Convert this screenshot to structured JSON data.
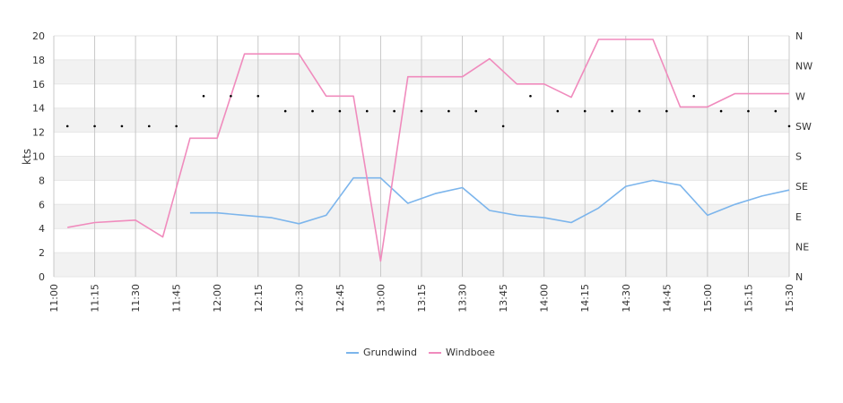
{
  "colors": {
    "grundwind": "#7cb5ec",
    "windboee": "#f08bbd",
    "band": "#f2f2f2",
    "grid": "#c8c8c8",
    "direction_dot": "#000000"
  },
  "chart_data": {
    "type": "line",
    "title": "",
    "xlabel": "",
    "ylabel": "kts",
    "ylim": [
      0,
      20
    ],
    "xlim": [
      "11:00",
      "15:30"
    ],
    "y_ticks": [
      0,
      2,
      4,
      6,
      8,
      10,
      12,
      14,
      16,
      18,
      20
    ],
    "x_tick_labels": [
      "11:00",
      "11:15",
      "11:30",
      "11:45",
      "12:00",
      "12:15",
      "12:30",
      "12:45",
      "13:00",
      "13:15",
      "13:30",
      "13:45",
      "14:00",
      "14:15",
      "14:30",
      "14:45",
      "15:00",
      "15:15",
      "15:30"
    ],
    "right_axis": {
      "label": "",
      "ticks": [
        "N",
        "NE",
        "E",
        "SE",
        "S",
        "SW",
        "W",
        "NW",
        "N"
      ]
    },
    "grid": true,
    "legend_position": "bottom-center",
    "series": [
      {
        "name": "Grundwind",
        "color_key": "grundwind",
        "points": [
          [
            "11:50",
            5.3
          ],
          [
            "12:00",
            5.3
          ],
          [
            "12:10",
            5.1
          ],
          [
            "12:20",
            4.9
          ],
          [
            "12:30",
            4.4
          ],
          [
            "12:40",
            5.1
          ],
          [
            "12:50",
            8.2
          ],
          [
            "13:00",
            8.2
          ],
          [
            "13:10",
            6.1
          ],
          [
            "13:20",
            6.9
          ],
          [
            "13:30",
            7.4
          ],
          [
            "13:40",
            5.5
          ],
          [
            "13:50",
            5.1
          ],
          [
            "14:00",
            4.9
          ],
          [
            "14:10",
            4.5
          ],
          [
            "14:20",
            5.7
          ],
          [
            "14:30",
            7.5
          ],
          [
            "14:40",
            8.0
          ],
          [
            "14:50",
            7.6
          ],
          [
            "15:00",
            5.1
          ],
          [
            "15:10",
            6.0
          ],
          [
            "15:20",
            6.7
          ],
          [
            "15:30",
            7.2
          ]
        ]
      },
      {
        "name": "Windboee",
        "color_key": "windboee",
        "points": [
          [
            "11:05",
            4.1
          ],
          [
            "11:15",
            4.5
          ],
          [
            "11:30",
            4.7
          ],
          [
            "11:40",
            3.3
          ],
          [
            "11:50",
            11.5
          ],
          [
            "12:00",
            11.5
          ],
          [
            "12:10",
            18.5
          ],
          [
            "12:20",
            18.5
          ],
          [
            "12:30",
            18.5
          ],
          [
            "12:40",
            15.0
          ],
          [
            "12:50",
            15.0
          ],
          [
            "13:00",
            1.3
          ],
          [
            "13:10",
            16.6
          ],
          [
            "13:20",
            16.6
          ],
          [
            "13:30",
            16.6
          ],
          [
            "13:40",
            18.1
          ],
          [
            "13:50",
            16.0
          ],
          [
            "14:00",
            16.0
          ],
          [
            "14:10",
            14.9
          ],
          [
            "14:20",
            19.7
          ],
          [
            "14:30",
            19.7
          ],
          [
            "14:40",
            19.7
          ],
          [
            "14:50",
            14.1
          ],
          [
            "15:00",
            14.1
          ],
          [
            "15:10",
            15.2
          ],
          [
            "15:20",
            15.2
          ],
          [
            "15:30",
            15.2
          ]
        ]
      },
      {
        "name": "",
        "type": "scatter",
        "axis": "right",
        "color_key": "direction_dot",
        "points": [
          [
            "11:05",
            "SW"
          ],
          [
            "11:15",
            "SW"
          ],
          [
            "11:25",
            "SW"
          ],
          [
            "11:35",
            "SW"
          ],
          [
            "11:45",
            "SW"
          ],
          [
            "11:55",
            "W"
          ],
          [
            "12:05",
            "W"
          ],
          [
            "12:15",
            "W"
          ],
          [
            "12:25",
            "WSW"
          ],
          [
            "12:35",
            "WSW"
          ],
          [
            "12:45",
            "WSW"
          ],
          [
            "12:55",
            "WSW"
          ],
          [
            "13:05",
            "WSW"
          ],
          [
            "13:15",
            "WSW"
          ],
          [
            "13:25",
            "WSW"
          ],
          [
            "13:35",
            "WSW"
          ],
          [
            "13:45",
            "SW"
          ],
          [
            "13:55",
            "W"
          ],
          [
            "14:05",
            "WSW"
          ],
          [
            "14:15",
            "WSW"
          ],
          [
            "14:25",
            "WSW"
          ],
          [
            "14:35",
            "WSW"
          ],
          [
            "14:45",
            "WSW"
          ],
          [
            "14:55",
            "W"
          ],
          [
            "15:05",
            "WSW"
          ],
          [
            "15:15",
            "WSW"
          ],
          [
            "15:25",
            "WSW"
          ],
          [
            "15:30",
            "SW"
          ]
        ]
      }
    ]
  }
}
